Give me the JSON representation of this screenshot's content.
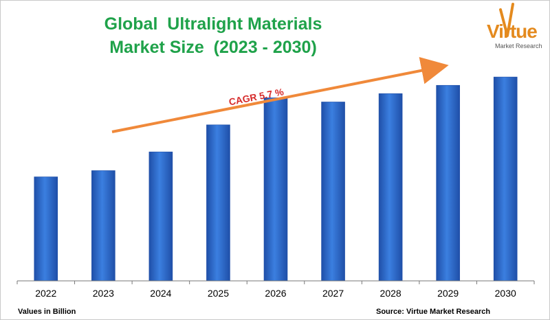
{
  "title": {
    "line1": "Global  Ultralight Materials",
    "line2": "Market Size  (2023 - 2030)"
  },
  "logo": {
    "word": "Virtue",
    "sub": "Market Research"
  },
  "annotation": {
    "cagr": "CAGR 5.7 %"
  },
  "footer": {
    "units": "Values in Billion",
    "source": "Source: Virtue Market Research"
  },
  "colors": {
    "bar": "#2f6fd0",
    "bar_dark": "#1f4fa8",
    "title": "#1fa24a",
    "arrow": "#f0893a",
    "cagr": "#d62a2a",
    "logo": "#e48a1e"
  },
  "chart_data": {
    "type": "bar",
    "categories": [
      "2022",
      "2023",
      "2024",
      "2025",
      "2026",
      "2027",
      "2028",
      "2029",
      "2030"
    ],
    "values": [
      5.0,
      5.3,
      6.2,
      7.5,
      8.8,
      8.6,
      9.0,
      9.4,
      9.8
    ],
    "title": "Global  Ultralight Materials Market Size  (2023 - 2030)",
    "xlabel": "",
    "ylabel": "",
    "ylim": [
      0,
      10.2
    ],
    "grid": false,
    "legend": "none"
  }
}
